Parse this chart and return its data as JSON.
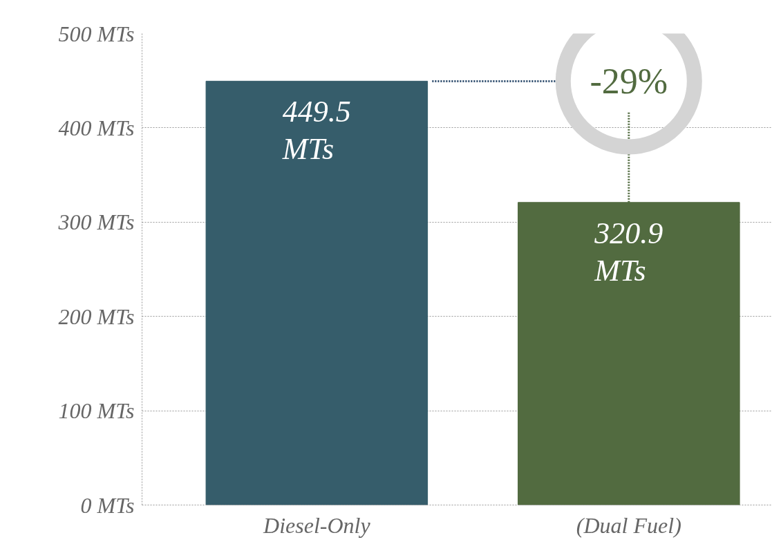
{
  "chart_data": {
    "type": "bar",
    "categories": [
      "Diesel-Only",
      "(Dual Fuel)"
    ],
    "values": [
      449.5,
      320.9
    ],
    "colors": [
      "#365d6b",
      "#526b40"
    ],
    "value_labels": [
      "449.5\nMTs",
      "320.9\nMTs"
    ],
    "ylim": [
      0,
      500
    ],
    "yticks": [
      {
        "value": 0,
        "label": "0 MTs"
      },
      {
        "value": 100,
        "label": "100 MTs"
      },
      {
        "value": 200,
        "label": "200 MTs"
      },
      {
        "value": 300,
        "label": "300 MTs"
      },
      {
        "value": 400,
        "label": "400 MTs"
      },
      {
        "value": 500,
        "label": "500 MTs"
      }
    ],
    "grid": "y",
    "annotations": [
      {
        "text": "-29%",
        "x": "(Dual Fuel)",
        "y": 320.9
      }
    ]
  }
}
